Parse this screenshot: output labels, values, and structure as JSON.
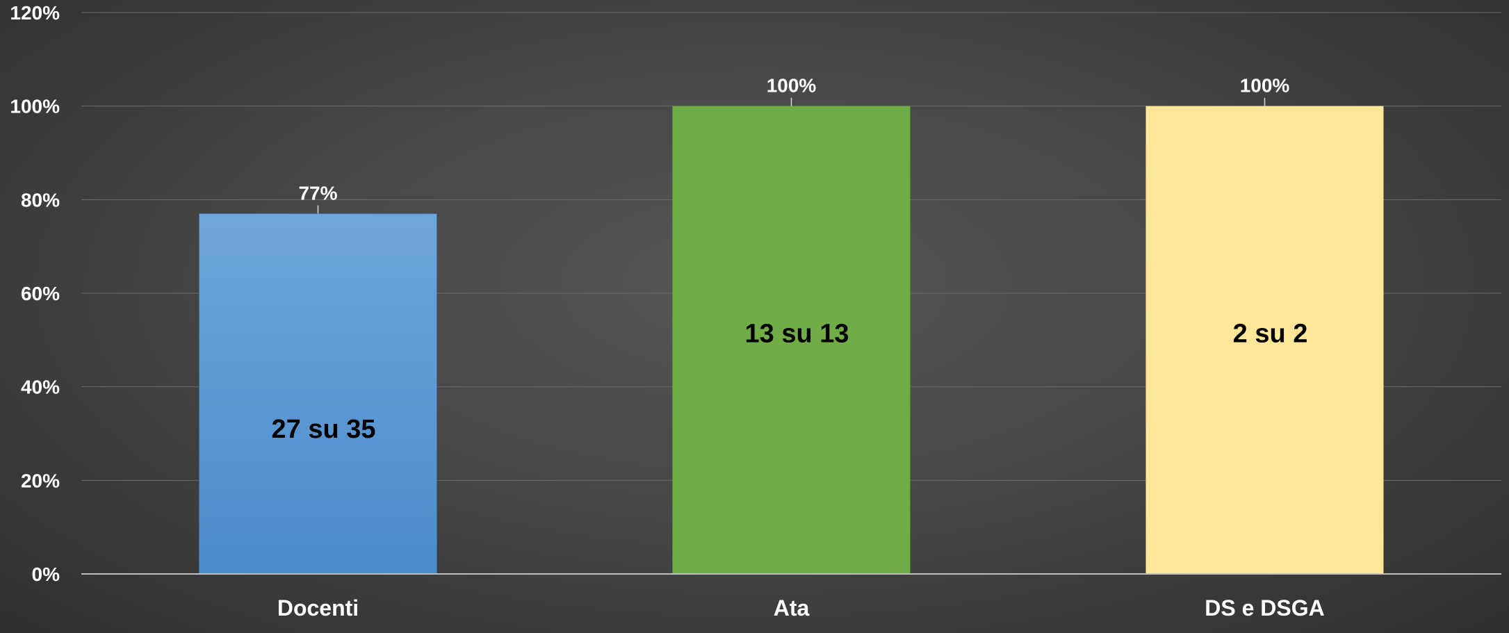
{
  "chart_data": {
    "type": "bar",
    "categories": [
      "Docenti",
      "Ata",
      "DS e DSGA"
    ],
    "values": [
      77,
      100,
      100
    ],
    "value_labels": [
      "77%",
      "100%",
      "100%"
    ],
    "inner_labels": [
      "27 su 35",
      "13 su 13",
      "2 su 2"
    ],
    "colors": [
      "#5b9bd5",
      "#70ad47",
      "#ffe699"
    ],
    "yticks": [
      "0%",
      "20%",
      "40%",
      "60%",
      "80%",
      "100%",
      "120%"
    ],
    "ylim": [
      0,
      120
    ],
    "grid": true,
    "title": "",
    "xlabel": "",
    "ylabel": ""
  }
}
